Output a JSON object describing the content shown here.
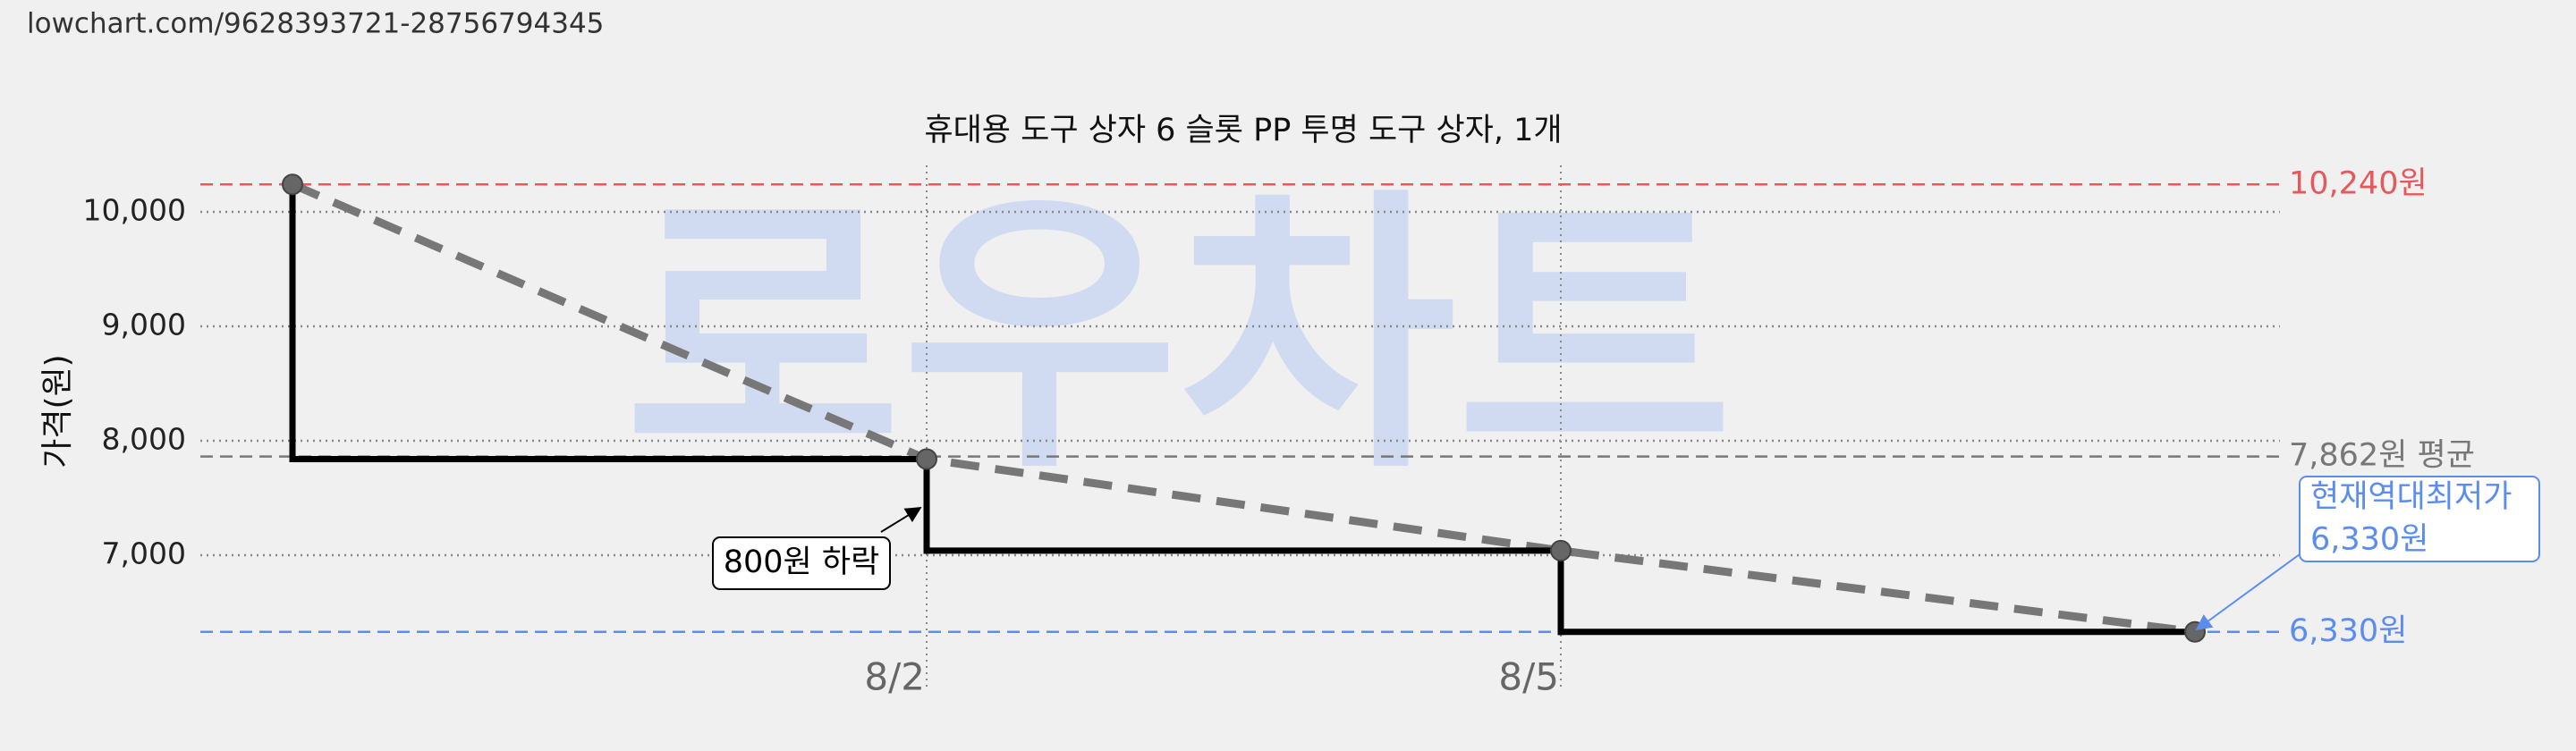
{
  "url": "lowchart.com/9628393721-28756794345",
  "chart_data": {
    "type": "step",
    "title": "휴대용 도구 상자 6 슬롯 PP 투명 도구 상자, 1개",
    "watermark": "로우차트",
    "ylabel": "가격(원)",
    "categories": [
      null,
      "8/2",
      "8/5",
      null
    ],
    "series": [
      {
        "name": "가격",
        "color": "#000000",
        "values": [
          10240,
          7840,
          7040,
          6330
        ]
      }
    ],
    "trend_color": "#777777",
    "ylim": [
      6000,
      10500
    ],
    "yticks": [
      {
        "value": 7000,
        "label": "7,000"
      },
      {
        "value": 8000,
        "label": "8,000"
      },
      {
        "value": 9000,
        "label": "9,000"
      },
      {
        "value": 10000,
        "label": "10,000"
      }
    ],
    "grid": true,
    "reference_lines": [
      {
        "value": 10240,
        "label": "10,240원",
        "color": "#e8585a"
      },
      {
        "value": 7862,
        "label": "7,862원 평균",
        "color": "#777777"
      },
      {
        "value": 6330,
        "label": "6,330원",
        "color": "#5b8def"
      }
    ],
    "annotations": [
      {
        "lines": [
          "800원 하락"
        ],
        "color": "#000000"
      },
      {
        "lines": [
          "현재역대최저가",
          "6,330원"
        ],
        "color": "#5b8def"
      }
    ]
  }
}
